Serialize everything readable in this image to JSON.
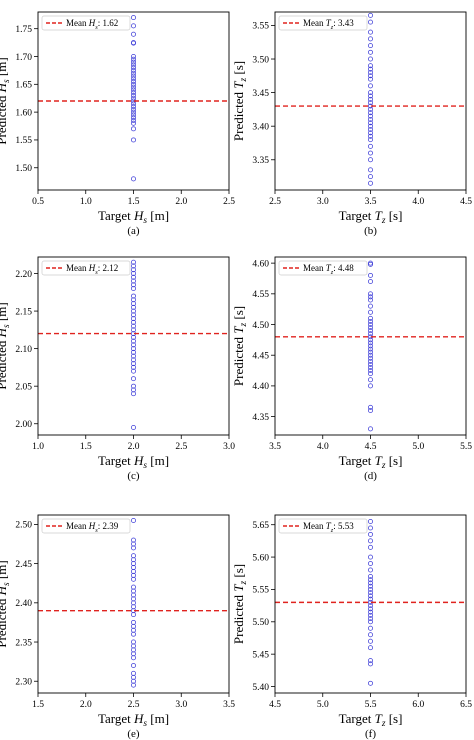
{
  "figure": {
    "colors": {
      "points": "#3f3fd8",
      "mean_line": "#e0231f",
      "frame": "#000000"
    }
  },
  "chart_data": [
    {
      "type": "scatter",
      "panel": "(a)",
      "xlabel": {
        "pre": "Target ",
        "sym": "H",
        "sub": "s",
        "post": " [m]"
      },
      "ylabel": {
        "pre": "Predicted ",
        "sym": "H",
        "sub": "s",
        "post": " [m]"
      },
      "xlim": [
        0.5,
        2.5
      ],
      "ylim": [
        1.46,
        1.78
      ],
      "xticks": [
        0.5,
        1.0,
        1.5,
        2.0,
        2.5
      ],
      "xtick_labels": [
        "0.5",
        "1.0",
        "1.5",
        "2.0",
        "2.5"
      ],
      "yticks": [
        1.5,
        1.55,
        1.6,
        1.65,
        1.7,
        1.75
      ],
      "ytick_labels": [
        "1.50",
        "1.55",
        "1.60",
        "1.65",
        "1.70",
        "1.75"
      ],
      "x": 1.5,
      "y": [
        1.77,
        1.755,
        1.74,
        1.725,
        1.724,
        1.7,
        1.695,
        1.69,
        1.685,
        1.68,
        1.675,
        1.67,
        1.665,
        1.66,
        1.655,
        1.65,
        1.645,
        1.64,
        1.635,
        1.63,
        1.625,
        1.62,
        1.615,
        1.61,
        1.605,
        1.6,
        1.595,
        1.59,
        1.585,
        1.58,
        1.57,
        1.55,
        1.48
      ],
      "mean": 1.62,
      "legend": {
        "pre": "Mean ",
        "sym": "H",
        "sub": "s",
        "post": ": 1.62"
      }
    },
    {
      "type": "scatter",
      "panel": "(b)",
      "xlabel": {
        "pre": "Target ",
        "sym": "T",
        "sub": "z",
        "post": " [s]"
      },
      "ylabel": {
        "pre": "Predicted ",
        "sym": "T",
        "sub": "z",
        "post": " [s]"
      },
      "xlim": [
        2.5,
        4.5
      ],
      "ylim": [
        3.305,
        3.57
      ],
      "xticks": [
        2.5,
        3.0,
        3.5,
        4.0,
        4.5
      ],
      "xtick_labels": [
        "2.5",
        "3.0",
        "3.5",
        "4.0",
        "4.5"
      ],
      "yticks": [
        3.35,
        3.4,
        3.45,
        3.5,
        3.55
      ],
      "ytick_labels": [
        "3.35",
        "3.40",
        "3.45",
        "3.50",
        "3.55"
      ],
      "x": 3.5,
      "y": [
        3.565,
        3.555,
        3.54,
        3.53,
        3.52,
        3.51,
        3.5,
        3.49,
        3.485,
        3.48,
        3.475,
        3.47,
        3.46,
        3.45,
        3.445,
        3.44,
        3.435,
        3.43,
        3.425,
        3.42,
        3.415,
        3.41,
        3.405,
        3.4,
        3.395,
        3.39,
        3.385,
        3.38,
        3.37,
        3.36,
        3.35,
        3.335,
        3.325,
        3.315
      ],
      "mean": 3.43,
      "legend": {
        "pre": "Mean ",
        "sym": "T",
        "sub": "z",
        "post": ": 3.43"
      }
    },
    {
      "type": "scatter",
      "panel": "(c)",
      "xlabel": {
        "pre": "Target ",
        "sym": "H",
        "sub": "s",
        "post": " [m]"
      },
      "ylabel": {
        "pre": "Predicted ",
        "sym": "H",
        "sub": "s",
        "post": " [m]"
      },
      "xlim": [
        1.0,
        3.0
      ],
      "ylim": [
        1.985,
        2.222
      ],
      "xticks": [
        1.0,
        1.5,
        2.0,
        2.5,
        3.0
      ],
      "xtick_labels": [
        "1.0",
        "1.5",
        "2.0",
        "2.5",
        "3.0"
      ],
      "yticks": [
        2.0,
        2.05,
        2.1,
        2.15,
        2.2
      ],
      "ytick_labels": [
        "2.00",
        "2.05",
        "2.10",
        "2.15",
        "2.20"
      ],
      "x": 2.0,
      "y": [
        2.215,
        2.21,
        2.205,
        2.2,
        2.195,
        2.19,
        2.185,
        2.18,
        2.17,
        2.165,
        2.16,
        2.155,
        2.15,
        2.145,
        2.14,
        2.135,
        2.13,
        2.125,
        2.12,
        2.115,
        2.11,
        2.105,
        2.1,
        2.095,
        2.09,
        2.085,
        2.08,
        2.075,
        2.07,
        2.06,
        2.05,
        2.045,
        2.04,
        1.995
      ],
      "mean": 2.12,
      "legend": {
        "pre": "Mean ",
        "sym": "H",
        "sub": "s",
        "post": ": 2.12"
      }
    },
    {
      "type": "scatter",
      "panel": "(d)",
      "xlabel": {
        "pre": "Target ",
        "sym": "T",
        "sub": "z",
        "post": " [s]"
      },
      "ylabel": {
        "pre": "Predicted ",
        "sym": "T",
        "sub": "z",
        "post": " [s]"
      },
      "xlim": [
        3.5,
        5.5
      ],
      "ylim": [
        4.32,
        4.61
      ],
      "xticks": [
        3.5,
        4.0,
        4.5,
        5.0,
        5.5
      ],
      "xtick_labels": [
        "3.5",
        "4.0",
        "4.5",
        "5.0",
        "5.5"
      ],
      "yticks": [
        4.35,
        4.4,
        4.45,
        4.5,
        4.55,
        4.6
      ],
      "ytick_labels": [
        "4.35",
        "4.40",
        "4.45",
        "4.50",
        "4.55",
        "4.60"
      ],
      "x": 4.5,
      "y": [
        4.6,
        4.598,
        4.58,
        4.57,
        4.55,
        4.545,
        4.54,
        4.53,
        4.52,
        4.51,
        4.505,
        4.5,
        4.495,
        4.49,
        4.485,
        4.48,
        4.475,
        4.47,
        4.465,
        4.46,
        4.455,
        4.45,
        4.445,
        4.44,
        4.435,
        4.43,
        4.425,
        4.42,
        4.41,
        4.4,
        4.365,
        4.36,
        4.33
      ],
      "mean": 4.48,
      "legend": {
        "pre": "Mean ",
        "sym": "T",
        "sub": "z",
        "post": ": 4.48"
      }
    },
    {
      "type": "scatter",
      "panel": "(e)",
      "xlabel": {
        "pre": "Target ",
        "sym": "H",
        "sub": "s",
        "post": " [m]"
      },
      "ylabel": {
        "pre": "Predicted ",
        "sym": "H",
        "sub": "s",
        "post": " [m]"
      },
      "xlim": [
        1.5,
        3.5
      ],
      "ylim": [
        2.285,
        2.512
      ],
      "xticks": [
        1.5,
        2.0,
        2.5,
        3.0,
        3.5
      ],
      "xtick_labels": [
        "1.5",
        "2.0",
        "2.5",
        "3.0",
        "3.5"
      ],
      "yticks": [
        2.3,
        2.35,
        2.4,
        2.45,
        2.5
      ],
      "ytick_labels": [
        "2.30",
        "2.35",
        "2.40",
        "2.45",
        "2.50"
      ],
      "x": 2.5,
      "y": [
        2.505,
        2.48,
        2.475,
        2.47,
        2.46,
        2.455,
        2.45,
        2.445,
        2.44,
        2.435,
        2.43,
        2.42,
        2.415,
        2.41,
        2.405,
        2.4,
        2.395,
        2.39,
        2.385,
        2.375,
        2.37,
        2.365,
        2.36,
        2.35,
        2.345,
        2.34,
        2.335,
        2.33,
        2.32,
        2.31,
        2.305,
        2.3,
        2.295
      ],
      "mean": 2.39,
      "legend": {
        "pre": "Mean ",
        "sym": "H",
        "sub": "s",
        "post": ": 2.39"
      }
    },
    {
      "type": "scatter",
      "panel": "(f)",
      "xlabel": {
        "pre": "Target ",
        "sym": "T",
        "sub": "z",
        "post": " [s]"
      },
      "ylabel": {
        "pre": "Predicted ",
        "sym": "T",
        "sub": "z",
        "post": " [s]"
      },
      "xlim": [
        4.5,
        6.5
      ],
      "ylim": [
        5.39,
        5.665
      ],
      "xticks": [
        4.5,
        5.0,
        5.5,
        6.0,
        6.5
      ],
      "xtick_labels": [
        "4.5",
        "5.0",
        "5.5",
        "6.0",
        "6.5"
      ],
      "yticks": [
        5.4,
        5.45,
        5.5,
        5.55,
        5.6,
        5.65
      ],
      "ytick_labels": [
        "5.40",
        "5.45",
        "5.50",
        "5.55",
        "5.60",
        "5.65"
      ],
      "x": 5.5,
      "y": [
        5.655,
        5.645,
        5.635,
        5.625,
        5.615,
        5.6,
        5.59,
        5.58,
        5.57,
        5.565,
        5.56,
        5.555,
        5.55,
        5.545,
        5.54,
        5.535,
        5.53,
        5.525,
        5.52,
        5.515,
        5.51,
        5.505,
        5.5,
        5.49,
        5.48,
        5.47,
        5.46,
        5.44,
        5.435,
        5.405
      ],
      "mean": 5.53,
      "legend": {
        "pre": "Mean ",
        "sym": "T",
        "sub": "z",
        "post": ": 5.53"
      }
    }
  ]
}
